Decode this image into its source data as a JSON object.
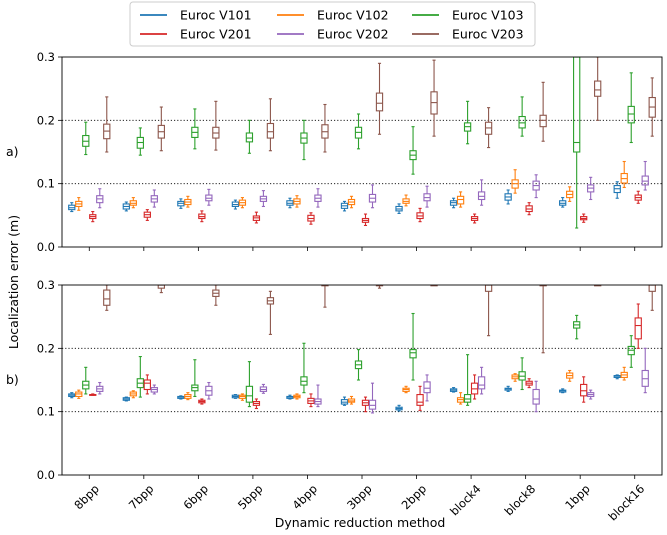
{
  "chart_data": {
    "type": "box",
    "xlabel": "Dynamic reduction method",
    "ylabel": "Localization error (m)",
    "categories": [
      "8bpp",
      "7bpp",
      "6bpp",
      "5bpp",
      "4bpp",
      "3bpp",
      "2bpp",
      "block4",
      "block8",
      "1bpp",
      "block16"
    ],
    "ylim": [
      0,
      0.3
    ],
    "yticks": [
      "0.0",
      "0.1",
      "0.2",
      "0.3"
    ],
    "reference_lines": [
      0.1,
      0.2
    ],
    "grid": false,
    "legend_placement": "top-center",
    "series": [
      {
        "name": "Euroc V101",
        "color": "#1f77b4"
      },
      {
        "name": "Euroc V102",
        "color": "#ff7f0e"
      },
      {
        "name": "Euroc V103",
        "color": "#2ca02c"
      },
      {
        "name": "Euroc V201",
        "color": "#d62728"
      },
      {
        "name": "Euroc V202",
        "color": "#9467bd"
      },
      {
        "name": "Euroc V203",
        "color": "#8c564b"
      }
    ],
    "panels": [
      {
        "label": "a)",
        "boxes": {
          "Euroc V101": [
            [
              0.056,
              0.059,
              0.062,
              0.066,
              0.07
            ],
            [
              0.057,
              0.06,
              0.064,
              0.068,
              0.071
            ],
            [
              0.061,
              0.065,
              0.069,
              0.072,
              0.076
            ],
            [
              0.06,
              0.064,
              0.067,
              0.071,
              0.074
            ],
            [
              0.062,
              0.066,
              0.069,
              0.073,
              0.077
            ],
            [
              0.057,
              0.061,
              0.065,
              0.069,
              0.072
            ],
            [
              0.053,
              0.057,
              0.06,
              0.064,
              0.068
            ],
            [
              0.062,
              0.066,
              0.07,
              0.073,
              0.077
            ],
            [
              0.068,
              0.074,
              0.079,
              0.084,
              0.09
            ],
            [
              0.063,
              0.066,
              0.069,
              0.073,
              0.078
            ],
            [
              0.077,
              0.086,
              0.092,
              0.097,
              0.103
            ]
          ],
          "Euroc V102": [
            [
              0.058,
              0.064,
              0.068,
              0.072,
              0.078
            ],
            [
              0.062,
              0.066,
              0.069,
              0.073,
              0.078
            ],
            [
              0.063,
              0.067,
              0.071,
              0.075,
              0.08
            ],
            [
              0.062,
              0.066,
              0.07,
              0.074,
              0.078
            ],
            [
              0.063,
              0.068,
              0.072,
              0.076,
              0.081
            ],
            [
              0.062,
              0.067,
              0.071,
              0.075,
              0.08
            ],
            [
              0.065,
              0.069,
              0.072,
              0.076,
              0.082
            ],
            [
              0.063,
              0.068,
              0.075,
              0.08,
              0.087
            ],
            [
              0.085,
              0.093,
              0.1,
              0.106,
              0.122
            ],
            [
              0.072,
              0.078,
              0.083,
              0.088,
              0.095
            ],
            [
              0.094,
              0.101,
              0.108,
              0.116,
              0.135
            ]
          ],
          "Euroc V103": [
            [
              0.146,
              0.159,
              0.167,
              0.176,
              0.197
            ],
            [
              0.145,
              0.156,
              0.165,
              0.173,
              0.188
            ],
            [
              0.155,
              0.173,
              0.181,
              0.189,
              0.218
            ],
            [
              0.148,
              0.166,
              0.172,
              0.18,
              0.2
            ],
            [
              0.138,
              0.164,
              0.172,
              0.18,
              0.2
            ],
            [
              0.155,
              0.172,
              0.181,
              0.189,
              0.21
            ],
            [
              0.115,
              0.138,
              0.145,
              0.152,
              0.19
            ],
            [
              0.163,
              0.183,
              0.19,
              0.196,
              0.23
            ],
            [
              0.175,
              0.188,
              0.196,
              0.206,
              0.237
            ],
            [
              0.03,
              0.15,
              0.165,
              0.3,
              0.3
            ],
            [
              0.165,
              0.196,
              0.21,
              0.222,
              0.275
            ]
          ],
          "Euroc V201": [
            [
              0.04,
              0.045,
              0.048,
              0.051,
              0.056
            ],
            [
              0.042,
              0.047,
              0.051,
              0.055,
              0.059
            ],
            [
              0.04,
              0.045,
              0.048,
              0.052,
              0.057
            ],
            [
              0.038,
              0.042,
              0.046,
              0.049,
              0.055
            ],
            [
              0.036,
              0.041,
              0.045,
              0.05,
              0.054
            ],
            [
              0.034,
              0.039,
              0.042,
              0.045,
              0.052
            ],
            [
              0.04,
              0.045,
              0.049,
              0.054,
              0.061
            ],
            [
              0.038,
              0.042,
              0.045,
              0.048,
              0.052
            ],
            [
              0.051,
              0.056,
              0.06,
              0.065,
              0.07
            ],
            [
              0.039,
              0.043,
              0.045,
              0.048,
              0.052
            ],
            [
              0.069,
              0.074,
              0.078,
              0.082,
              0.088
            ]
          ],
          "Euroc V202": [
            [
              0.062,
              0.07,
              0.076,
              0.081,
              0.092
            ],
            [
              0.063,
              0.071,
              0.076,
              0.081,
              0.09
            ],
            [
              0.066,
              0.073,
              0.077,
              0.082,
              0.091
            ],
            [
              0.064,
              0.072,
              0.076,
              0.08,
              0.089
            ],
            [
              0.063,
              0.072,
              0.077,
              0.082,
              0.092
            ],
            [
              0.062,
              0.071,
              0.077,
              0.083,
              0.098
            ],
            [
              0.063,
              0.073,
              0.078,
              0.084,
              0.096
            ],
            [
              0.066,
              0.075,
              0.08,
              0.087,
              0.106
            ],
            [
              0.078,
              0.09,
              0.097,
              0.104,
              0.114
            ],
            [
              0.075,
              0.087,
              0.093,
              0.098,
              0.11
            ],
            [
              0.09,
              0.098,
              0.104,
              0.112,
              0.135
            ]
          ],
          "Euroc V203": [
            [
              0.15,
              0.171,
              0.183,
              0.194,
              0.237
            ],
            [
              0.152,
              0.172,
              0.182,
              0.192,
              0.221
            ],
            [
              0.153,
              0.172,
              0.18,
              0.189,
              0.23
            ],
            [
              0.152,
              0.172,
              0.182,
              0.195,
              0.234
            ],
            [
              0.15,
              0.172,
              0.182,
              0.193,
              0.225
            ],
            [
              0.178,
              0.215,
              0.227,
              0.243,
              0.29
            ],
            [
              0.175,
              0.21,
              0.228,
              0.245,
              0.295
            ],
            [
              0.157,
              0.178,
              0.188,
              0.197,
              0.22
            ],
            [
              0.167,
              0.19,
              0.2,
              0.208,
              0.26
            ],
            [
              0.2,
              0.238,
              0.248,
              0.262,
              0.3
            ],
            [
              0.175,
              0.205,
              0.221,
              0.236,
              0.267
            ]
          ]
        }
      },
      {
        "label": "b)",
        "boxes": {
          "Euroc V101": [
            [
              0.122,
              0.124,
              0.126,
              0.128,
              0.13
            ],
            [
              0.117,
              0.118,
              0.12,
              0.122,
              0.123
            ],
            [
              0.12,
              0.121,
              0.122,
              0.124,
              0.125
            ],
            [
              0.121,
              0.122,
              0.124,
              0.126,
              0.127
            ],
            [
              0.12,
              0.121,
              0.123,
              0.124,
              0.126
            ],
            [
              0.11,
              0.112,
              0.115,
              0.119,
              0.123
            ],
            [
              0.101,
              0.103,
              0.105,
              0.107,
              0.11
            ],
            [
              0.131,
              0.132,
              0.134,
              0.136,
              0.138
            ],
            [
              0.132,
              0.134,
              0.136,
              0.137,
              0.14
            ],
            [
              0.13,
              0.131,
              0.133,
              0.134,
              0.136
            ],
            [
              0.152,
              0.154,
              0.156,
              0.157,
              0.158
            ]
          ],
          "Euroc V102": [
            [
              0.121,
              0.124,
              0.128,
              0.131,
              0.134
            ],
            [
              0.122,
              0.125,
              0.128,
              0.131,
              0.133
            ],
            [
              0.119,
              0.121,
              0.124,
              0.127,
              0.13
            ],
            [
              0.118,
              0.121,
              0.124,
              0.126,
              0.128
            ],
            [
              0.12,
              0.122,
              0.124,
              0.126,
              0.128
            ],
            [
              0.112,
              0.115,
              0.117,
              0.12,
              0.124
            ],
            [
              0.13,
              0.132,
              0.135,
              0.137,
              0.14
            ],
            [
              0.112,
              0.115,
              0.119,
              0.122,
              0.13
            ],
            [
              0.148,
              0.152,
              0.155,
              0.158,
              0.16
            ],
            [
              0.148,
              0.153,
              0.157,
              0.161,
              0.165
            ],
            [
              0.15,
              0.154,
              0.158,
              0.162,
              0.17
            ]
          ],
          "Euroc V103": [
            [
              0.128,
              0.136,
              0.142,
              0.148,
              0.17
            ],
            [
              0.123,
              0.138,
              0.145,
              0.152,
              0.187
            ],
            [
              0.124,
              0.133,
              0.138,
              0.142,
              0.182
            ],
            [
              0.108,
              0.115,
              0.125,
              0.14,
              0.179
            ],
            [
              0.13,
              0.142,
              0.148,
              0.155,
              0.208
            ],
            [
              0.15,
              0.168,
              0.174,
              0.18,
              0.198
            ],
            [
              0.15,
              0.185,
              0.193,
              0.198,
              0.255
            ],
            [
              0.11,
              0.115,
              0.12,
              0.127,
              0.19
            ],
            [
              0.135,
              0.15,
              0.156,
              0.163,
              0.185
            ],
            [
              0.215,
              0.232,
              0.237,
              0.242,
              0.252
            ],
            [
              0.17,
              0.19,
              0.197,
              0.203,
              0.22
            ]
          ],
          "Euroc V201": [
            [
              0.126,
              0.126,
              0.127,
              0.127,
              0.128
            ],
            [
              0.128,
              0.135,
              0.145,
              0.15,
              0.158
            ],
            [
              0.112,
              0.114,
              0.116,
              0.118,
              0.12
            ],
            [
              0.105,
              0.11,
              0.113,
              0.116,
              0.12
            ],
            [
              0.108,
              0.113,
              0.117,
              0.121,
              0.128
            ],
            [
              0.1,
              0.11,
              0.114,
              0.118,
              0.123
            ],
            [
              0.102,
              0.11,
              0.115,
              0.127,
              0.14
            ],
            [
              0.12,
              0.128,
              0.136,
              0.145,
              0.158
            ],
            [
              0.138,
              0.142,
              0.145,
              0.148,
              0.152
            ],
            [
              0.115,
              0.125,
              0.133,
              0.143,
              0.155
            ],
            [
              0.2,
              0.215,
              0.236,
              0.248,
              0.27
            ]
          ],
          "Euroc V202": [
            [
              0.128,
              0.132,
              0.136,
              0.14,
              0.146
            ],
            [
              0.128,
              0.131,
              0.135,
              0.138,
              0.142
            ],
            [
              0.12,
              0.126,
              0.133,
              0.14,
              0.146
            ],
            [
              0.129,
              0.132,
              0.135,
              0.139,
              0.143
            ],
            [
              0.108,
              0.112,
              0.116,
              0.12,
              0.142
            ],
            [
              0.098,
              0.104,
              0.11,
              0.118,
              0.145
            ],
            [
              0.117,
              0.13,
              0.137,
              0.147,
              0.158
            ],
            [
              0.128,
              0.136,
              0.142,
              0.155,
              0.17
            ],
            [
              0.1,
              0.112,
              0.12,
              0.135,
              0.148
            ],
            [
              0.12,
              0.124,
              0.127,
              0.13,
              0.134
            ],
            [
              0.13,
              0.14,
              0.152,
              0.165,
              0.2
            ]
          ],
          "Euroc V203": [
            [
              0.26,
              0.268,
              0.278,
              0.292,
              0.3
            ],
            [
              0.288,
              0.295,
              0.3,
              0.3,
              0.3
            ],
            [
              0.268,
              0.282,
              0.287,
              0.292,
              0.3
            ],
            [
              0.222,
              0.27,
              0.275,
              0.28,
              0.29
            ],
            [
              0.265,
              0.3,
              0.3,
              0.3,
              0.3
            ],
            [
              0.295,
              0.3,
              0.3,
              0.3,
              0.3
            ],
            [
              0.3,
              0.3,
              0.3,
              0.3,
              0.3
            ],
            [
              0.22,
              0.29,
              0.3,
              0.3,
              0.3
            ],
            [
              0.193,
              0.3,
              0.3,
              0.3,
              0.3
            ],
            [
              0.3,
              0.3,
              0.3,
              0.3,
              0.3
            ],
            [
              0.26,
              0.29,
              0.3,
              0.3,
              0.3
            ]
          ]
        }
      }
    ]
  }
}
